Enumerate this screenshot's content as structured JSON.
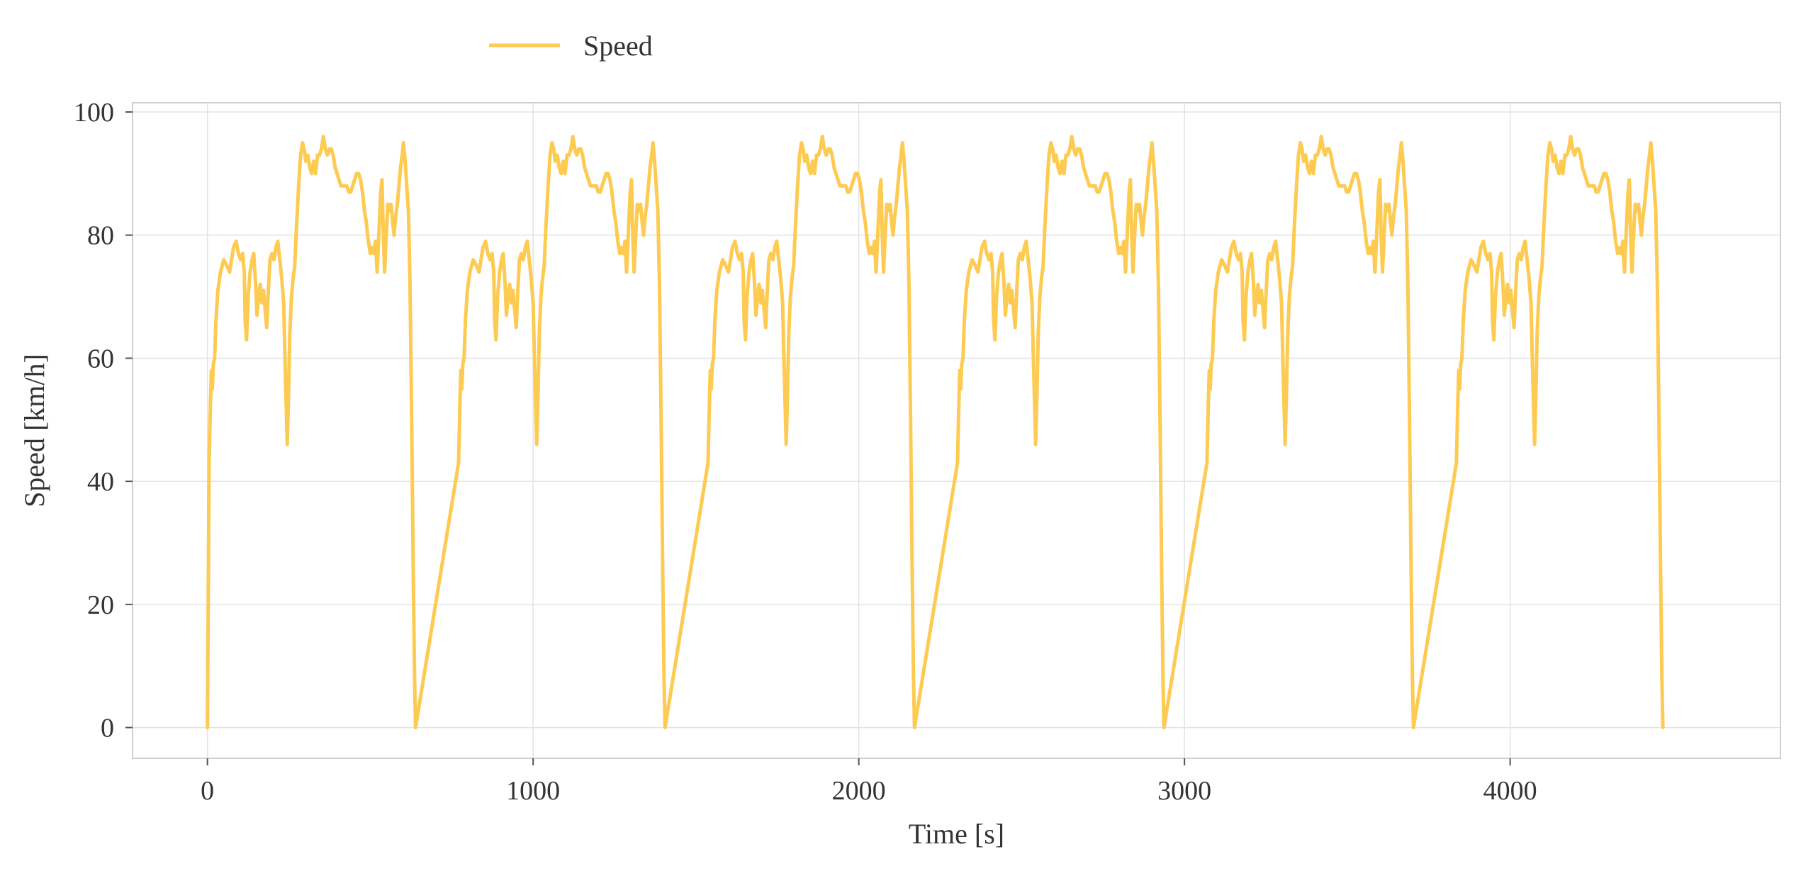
{
  "chart_data": {
    "type": "line",
    "title": "",
    "xlabel": "Time [s]",
    "ylabel": "Speed [km/h]",
    "xlim": [
      -230,
      4830
    ],
    "ylim": [
      -5,
      101.5
    ],
    "xticks": [
      0,
      1000,
      2000,
      3000,
      4000
    ],
    "yticks": [
      0,
      20,
      40,
      60,
      80,
      100
    ],
    "xtick_labels": [
      "0",
      "1000",
      "2000",
      "3000",
      "4000"
    ],
    "ytick_labels": [
      "0",
      "20",
      "40",
      "60",
      "80",
      "100"
    ],
    "grid": true,
    "legend_position": "top-left, above plot",
    "repeats": 6,
    "cycle_length_s": 766,
    "series": [
      {
        "name": "Speed",
        "color": "#fdcb52",
        "cycle_points": [
          [
            0,
            0
          ],
          [
            5,
            43
          ],
          [
            9,
            52
          ],
          [
            12,
            58
          ],
          [
            15,
            55
          ],
          [
            18,
            59
          ],
          [
            22,
            60
          ],
          [
            26,
            66
          ],
          [
            32,
            71
          ],
          [
            40,
            74
          ],
          [
            50,
            76
          ],
          [
            60,
            75
          ],
          [
            68,
            74
          ],
          [
            74,
            76
          ],
          [
            80,
            78
          ],
          [
            88,
            79
          ],
          [
            95,
            77
          ],
          [
            102,
            76
          ],
          [
            108,
            77
          ],
          [
            113,
            74
          ],
          [
            116,
            66
          ],
          [
            120,
            63
          ],
          [
            125,
            70
          ],
          [
            131,
            74
          ],
          [
            137,
            76
          ],
          [
            142,
            77
          ],
          [
            148,
            72
          ],
          [
            152,
            67
          ],
          [
            157,
            70
          ],
          [
            162,
            72
          ],
          [
            167,
            69
          ],
          [
            172,
            71
          ],
          [
            177,
            68
          ],
          [
            182,
            65
          ],
          [
            187,
            71
          ],
          [
            192,
            76
          ],
          [
            198,
            77
          ],
          [
            204,
            76
          ],
          [
            210,
            78
          ],
          [
            216,
            79
          ],
          [
            222,
            76
          ],
          [
            228,
            73
          ],
          [
            234,
            69
          ],
          [
            238,
            60
          ],
          [
            242,
            52
          ],
          [
            245,
            46
          ],
          [
            249,
            54
          ],
          [
            253,
            64
          ],
          [
            258,
            70
          ],
          [
            263,
            73
          ],
          [
            268,
            75
          ],
          [
            273,
            81
          ],
          [
            280,
            88
          ],
          [
            286,
            93
          ],
          [
            292,
            95
          ],
          [
            297,
            94
          ],
          [
            302,
            92
          ],
          [
            308,
            93
          ],
          [
            314,
            91
          ],
          [
            320,
            90
          ],
          [
            326,
            92
          ],
          [
            332,
            90
          ],
          [
            338,
            93
          ],
          [
            344,
            93
          ],
          [
            350,
            94
          ],
          [
            356,
            96
          ],
          [
            362,
            94
          ],
          [
            368,
            93
          ],
          [
            374,
            94
          ],
          [
            380,
            94
          ],
          [
            386,
            93
          ],
          [
            392,
            91
          ],
          [
            398,
            90
          ],
          [
            404,
            89
          ],
          [
            410,
            88
          ],
          [
            416,
            88
          ],
          [
            422,
            88
          ],
          [
            428,
            88
          ],
          [
            434,
            87
          ],
          [
            440,
            87
          ],
          [
            446,
            88
          ],
          [
            452,
            89
          ],
          [
            458,
            90
          ],
          [
            464,
            90
          ],
          [
            470,
            89
          ],
          [
            476,
            87
          ],
          [
            482,
            84
          ],
          [
            488,
            82
          ],
          [
            494,
            79
          ],
          [
            500,
            77
          ],
          [
            506,
            78
          ],
          [
            511,
            77
          ],
          [
            516,
            79
          ],
          [
            521,
            74
          ],
          [
            527,
            81
          ],
          [
            532,
            87
          ],
          [
            536,
            89
          ],
          [
            540,
            80
          ],
          [
            544,
            74
          ],
          [
            549,
            80
          ],
          [
            554,
            85
          ],
          [
            559,
            84
          ],
          [
            564,
            85
          ],
          [
            569,
            82
          ],
          [
            573,
            80
          ],
          [
            578,
            83
          ],
          [
            583,
            85
          ],
          [
            588,
            88
          ],
          [
            593,
            91
          ],
          [
            598,
            93
          ],
          [
            602,
            95
          ],
          [
            607,
            92
          ],
          [
            612,
            88
          ],
          [
            617,
            84
          ],
          [
            622,
            72
          ],
          [
            627,
            50
          ],
          [
            632,
            25
          ],
          [
            636,
            8
          ],
          [
            639,
            0
          ]
        ]
      }
    ]
  }
}
